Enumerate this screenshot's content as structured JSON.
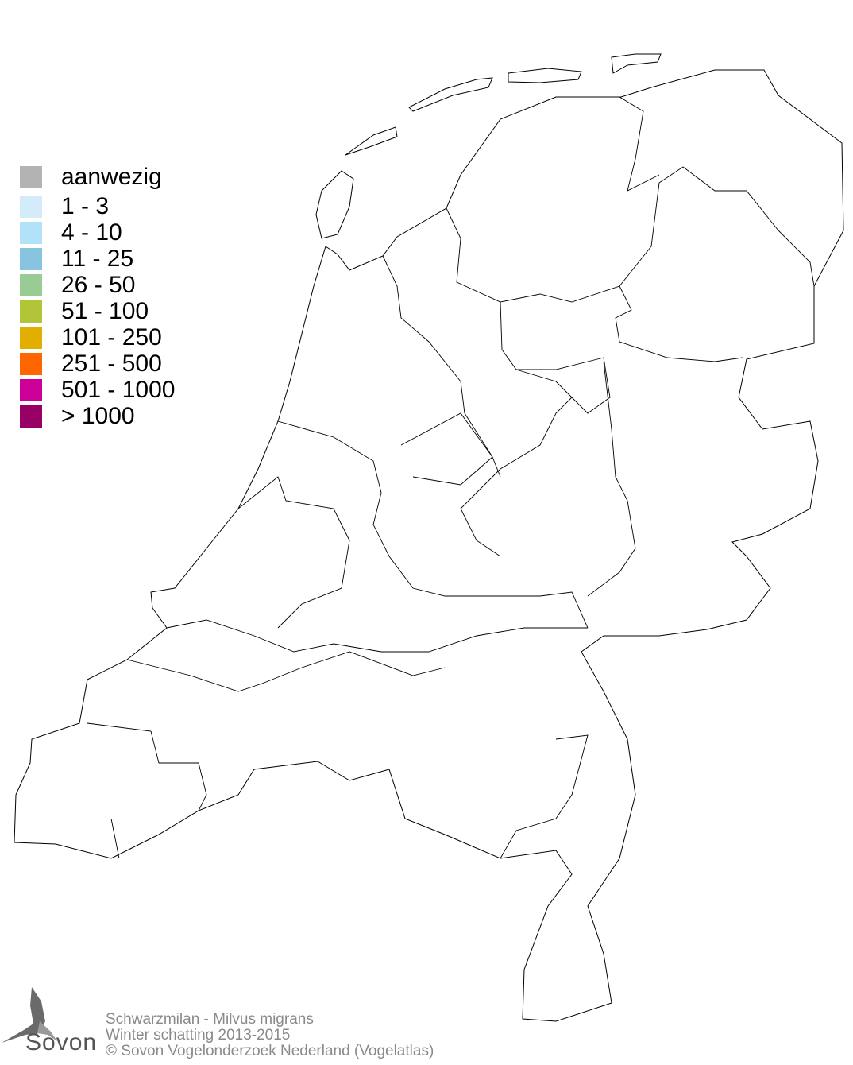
{
  "map": {
    "region": "Nederland",
    "border_color": "#000000",
    "fill_color": "#ffffff"
  },
  "legend": {
    "items": [
      {
        "label": "aanwezig",
        "color": "#b3b3b3"
      },
      {
        "label": "1 - 3",
        "color": "#d4ebf9"
      },
      {
        "label": "4 - 10",
        "color": "#b1e2f9"
      },
      {
        "label": "11 - 25",
        "color": "#88c3e0"
      },
      {
        "label": "26 - 50",
        "color": "#98cc94"
      },
      {
        "label": "51 - 100",
        "color": "#b2c437"
      },
      {
        "label": "101 - 250",
        "color": "#e2ae00"
      },
      {
        "label": "251 - 500",
        "color": "#ff6600"
      },
      {
        "label": "501 - 1000",
        "color": "#cc0099"
      },
      {
        "label": "> 1000",
        "color": "#990066"
      }
    ]
  },
  "credits": {
    "species": "Schwarzmilan - Milvus migrans",
    "period": "Winter schatting 2013-2015",
    "copyright": "© Sovon Vogelonderzoek Nederland (Vogelatlas)"
  },
  "logo": {
    "text": "Sovon"
  }
}
